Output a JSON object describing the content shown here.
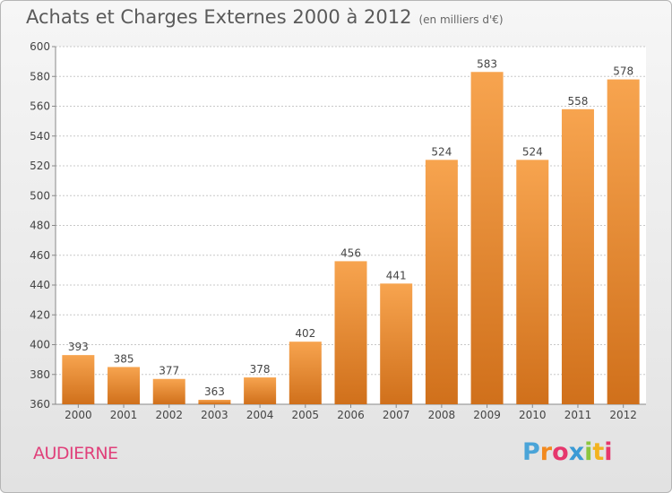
{
  "header": {
    "title": "Achats et Charges Externes 2000 à 2012",
    "subtitle": "(en milliers d'€)"
  },
  "footer": {
    "commune": "AUDIERNE",
    "logo": "Proxiti"
  },
  "colors": {
    "bar_light": "#f7a44f",
    "bar_dark": "#d0701b",
    "commune_text": "#e0407a"
  },
  "chart_data": {
    "type": "bar",
    "title": "Achats et Charges Externes 2000 à 2012",
    "subtitle": "(en milliers d'€)",
    "categories": [
      "2000",
      "2001",
      "2002",
      "2003",
      "2004",
      "2005",
      "2006",
      "2007",
      "2008",
      "2009",
      "2010",
      "2011",
      "2012"
    ],
    "values": [
      393,
      385,
      377,
      363,
      378,
      402,
      456,
      441,
      524,
      583,
      524,
      558,
      578
    ],
    "ylim": [
      360,
      600
    ],
    "yticks": [
      360,
      380,
      400,
      420,
      440,
      460,
      480,
      500,
      520,
      540,
      560,
      580,
      600
    ],
    "grid": true,
    "xlabel": "",
    "ylabel": ""
  }
}
